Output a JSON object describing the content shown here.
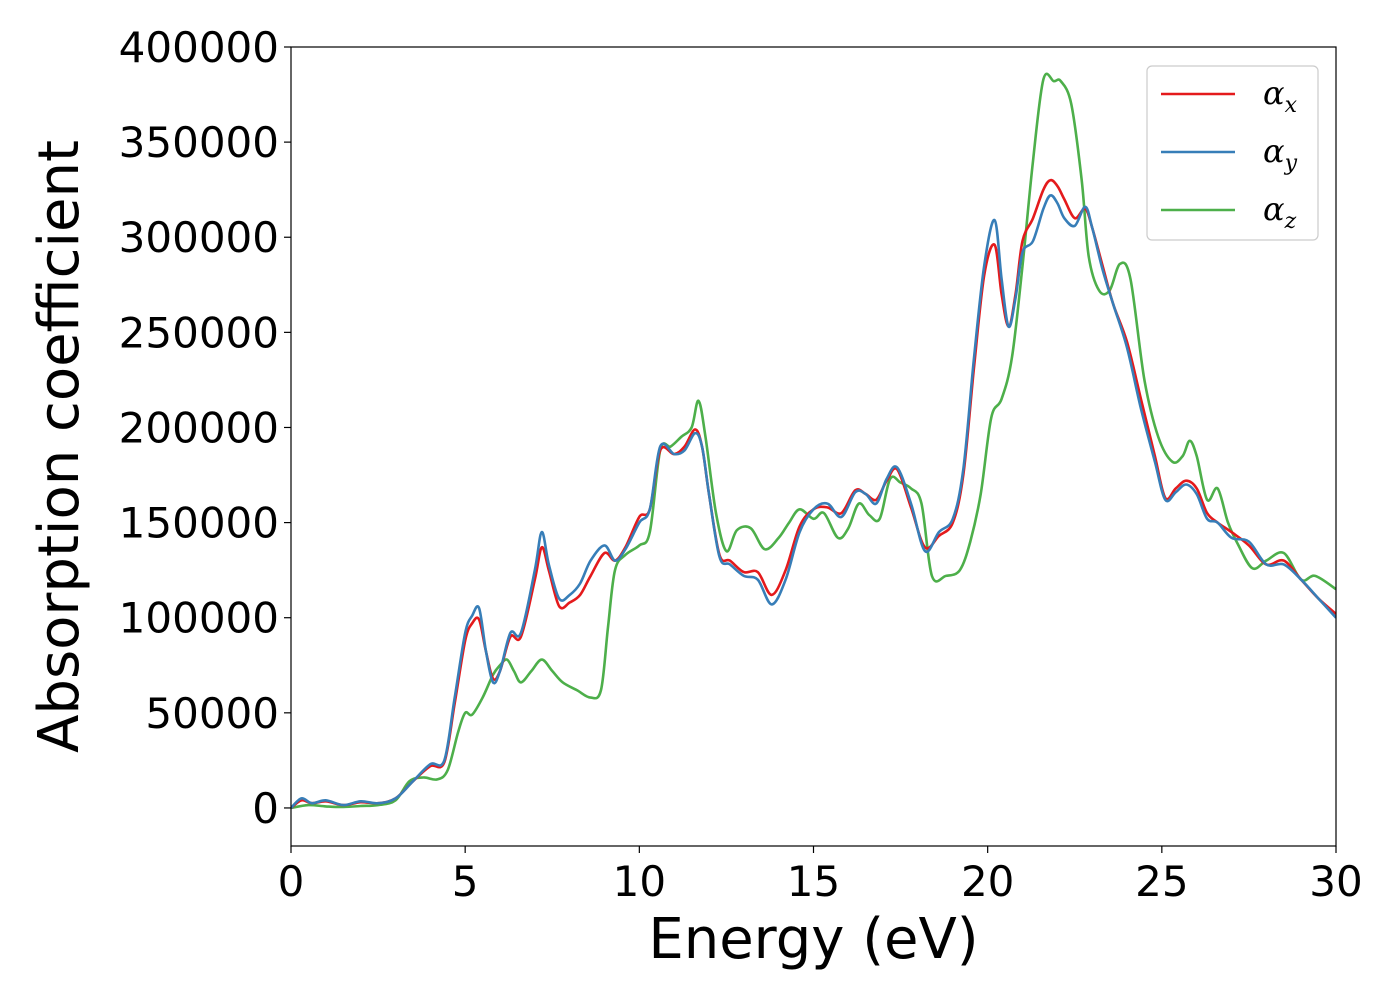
{
  "chart_data": {
    "type": "line",
    "title": "",
    "xlabel": "Energy (eV)",
    "ylabel": "Absorption coefficient",
    "xlim": [
      0,
      30
    ],
    "ylim": [
      -20000,
      400000
    ],
    "xticks": [
      "0",
      "5",
      "10",
      "15",
      "20",
      "25",
      "30"
    ],
    "yticks": [
      "0",
      "50000",
      "100000",
      "150000",
      "200000",
      "250000",
      "300000",
      "350000",
      "400000"
    ],
    "grid": false,
    "legend_position": "top-right",
    "series": [
      {
        "name": "αx",
        "color": "#e41a1c",
        "x": [
          0,
          0.3,
          0.6,
          1,
          1.5,
          2,
          2.5,
          3,
          3.5,
          4,
          4.4,
          4.7,
          5,
          5.2,
          5.4,
          5.6,
          5.8,
          6,
          6.3,
          6.6,
          7,
          7.2,
          7.4,
          7.7,
          8,
          8.3,
          8.6,
          9,
          9.3,
          9.6,
          10,
          10.3,
          10.6,
          11,
          11.3,
          11.6,
          11.8,
          12,
          12.3,
          12.6,
          13,
          13.4,
          13.8,
          14.2,
          14.6,
          15,
          15.4,
          15.8,
          16.2,
          16.5,
          16.8,
          17.1,
          17.4,
          17.8,
          18.2,
          18.6,
          19,
          19.3,
          19.6,
          19.9,
          20.2,
          20.4,
          20.6,
          20.8,
          21,
          21.3,
          21.6,
          21.8,
          22,
          22.2,
          22.5,
          22.8,
          23,
          23.3,
          23.6,
          24,
          24.4,
          24.8,
          25.1,
          25.4,
          25.7,
          26,
          26.3,
          26.6,
          27,
          27.5,
          28,
          28.5,
          29,
          29.5,
          30
        ],
        "y": [
          0,
          4000,
          2500,
          3500,
          1500,
          3000,
          2500,
          5000,
          14000,
          22000,
          24000,
          55000,
          88000,
          97000,
          99000,
          82000,
          68000,
          72000,
          90000,
          90000,
          120000,
          137000,
          125000,
          106000,
          108000,
          112000,
          122000,
          134000,
          130000,
          137000,
          153000,
          157000,
          188000,
          186000,
          190000,
          199000,
          190000,
          165000,
          133000,
          130000,
          124000,
          124000,
          112000,
          125000,
          148000,
          157000,
          158000,
          155000,
          167000,
          165000,
          162000,
          172000,
          178000,
          158000,
          137000,
          143000,
          150000,
          175000,
          230000,
          280000,
          296000,
          270000,
          253000,
          270000,
          298000,
          310000,
          325000,
          330000,
          327000,
          320000,
          310000,
          315000,
          305000,
          285000,
          265000,
          245000,
          215000,
          185000,
          163000,
          168000,
          172000,
          168000,
          155000,
          150000,
          145000,
          138000,
          128000,
          130000,
          120000,
          110000,
          102000
        ]
      },
      {
        "name": "αy",
        "color": "#377eb8",
        "x": [
          0,
          0.3,
          0.6,
          1,
          1.5,
          2,
          2.5,
          3,
          3.5,
          4,
          4.4,
          4.7,
          5,
          5.2,
          5.4,
          5.6,
          5.8,
          6,
          6.3,
          6.6,
          7,
          7.2,
          7.4,
          7.7,
          8,
          8.3,
          8.6,
          9,
          9.3,
          9.6,
          10,
          10.3,
          10.6,
          11,
          11.3,
          11.6,
          11.8,
          12,
          12.3,
          12.6,
          13,
          13.4,
          13.8,
          14.2,
          14.6,
          15,
          15.4,
          15.8,
          16.2,
          16.5,
          16.8,
          17.1,
          17.4,
          17.8,
          18.2,
          18.6,
          19,
          19.3,
          19.6,
          19.9,
          20.2,
          20.4,
          20.6,
          20.8,
          21,
          21.3,
          21.6,
          21.8,
          22,
          22.2,
          22.5,
          22.8,
          23,
          23.3,
          23.6,
          24,
          24.4,
          24.8,
          25.1,
          25.4,
          25.7,
          26,
          26.3,
          26.6,
          27,
          27.5,
          28,
          28.5,
          29,
          29.5,
          30
        ],
        "y": [
          0,
          5000,
          2500,
          4000,
          1500,
          3500,
          2500,
          5000,
          14000,
          23000,
          25000,
          58000,
          92000,
          101000,
          105000,
          82000,
          66000,
          72000,
          92000,
          92000,
          125000,
          145000,
          128000,
          110000,
          112000,
          118000,
          130000,
          138000,
          130000,
          136000,
          150000,
          157000,
          190000,
          186000,
          188000,
          197000,
          190000,
          165000,
          132000,
          128000,
          122000,
          120000,
          107000,
          120000,
          145000,
          157000,
          160000,
          153000,
          166000,
          165000,
          160000,
          173000,
          179000,
          160000,
          135000,
          145000,
          152000,
          178000,
          235000,
          285000,
          309000,
          278000,
          253000,
          268000,
          292000,
          298000,
          315000,
          322000,
          318000,
          310000,
          306000,
          316000,
          305000,
          283000,
          265000,
          242000,
          210000,
          182000,
          162000,
          166000,
          170000,
          165000,
          152000,
          150000,
          142000,
          140000,
          128000,
          128000,
          120000,
          110000,
          100000
        ]
      },
      {
        "name": "αz",
        "color": "#4daf4a",
        "x": [
          0,
          0.5,
          1,
          1.5,
          2,
          2.5,
          3,
          3.4,
          3.8,
          4.2,
          4.5,
          4.8,
          5,
          5.2,
          5.5,
          5.8,
          6,
          6.2,
          6.4,
          6.6,
          6.9,
          7.2,
          7.5,
          7.8,
          8.2,
          8.6,
          8.9,
          9.1,
          9.3,
          9.6,
          10,
          10.3,
          10.6,
          10.9,
          11.2,
          11.5,
          11.7,
          11.9,
          12.2,
          12.5,
          12.8,
          13.2,
          13.6,
          14,
          14.3,
          14.6,
          15,
          15.3,
          15.7,
          16,
          16.3,
          16.6,
          16.9,
          17.2,
          17.5,
          17.8,
          18.1,
          18.4,
          18.8,
          19.2,
          19.5,
          19.8,
          20.1,
          20.4,
          20.7,
          21,
          21.3,
          21.6,
          21.9,
          22.1,
          22.4,
          22.7,
          22.9,
          23.2,
          23.5,
          23.8,
          24.1,
          24.5,
          24.9,
          25.3,
          25.6,
          25.8,
          26,
          26.3,
          26.6,
          26.9,
          27.2,
          27.6,
          28,
          28.5,
          29,
          29.4,
          30
        ],
        "y": [
          0,
          1500,
          800,
          500,
          1000,
          1500,
          4000,
          14000,
          16000,
          15000,
          20000,
          40000,
          50000,
          49000,
          58000,
          70000,
          75000,
          78000,
          72000,
          66000,
          72000,
          78000,
          72000,
          66000,
          62000,
          58000,
          62000,
          95000,
          125000,
          133000,
          138000,
          145000,
          188000,
          190000,
          195000,
          200000,
          214000,
          195000,
          155000,
          135000,
          146000,
          147000,
          136000,
          142000,
          150000,
          157000,
          152000,
          155000,
          142000,
          147000,
          160000,
          154000,
          152000,
          173000,
          171000,
          168000,
          160000,
          122000,
          122000,
          125000,
          140000,
          165000,
          205000,
          215000,
          237000,
          285000,
          340000,
          383000,
          382000,
          382000,
          370000,
          330000,
          290000,
          272000,
          272000,
          286000,
          278000,
          225000,
          195000,
          182000,
          185000,
          193000,
          185000,
          162000,
          168000,
          150000,
          138000,
          126000,
          130000,
          134000,
          120000,
          122000,
          115000
        ]
      }
    ]
  }
}
